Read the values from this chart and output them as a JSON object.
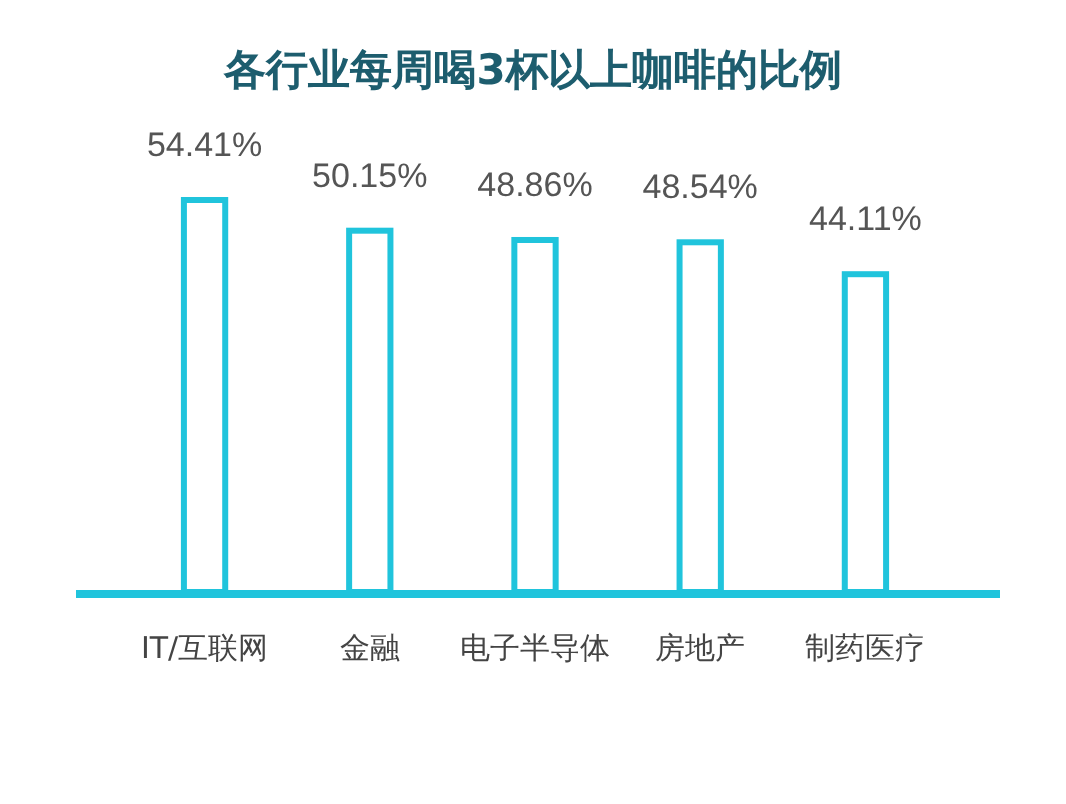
{
  "chart_data": {
    "type": "bar",
    "title": "各行业每周喝3杯以上咖啡的比例",
    "categories": [
      "IT/互联网",
      "金融",
      "电子半导体",
      "房地产",
      "制药医疗"
    ],
    "values": [
      54.41,
      50.15,
      48.86,
      48.54,
      44.11
    ],
    "value_labels": [
      "54.41%",
      "50.15%",
      "48.86%",
      "48.54%",
      "44.11%"
    ],
    "color": "#20c4dc"
  }
}
